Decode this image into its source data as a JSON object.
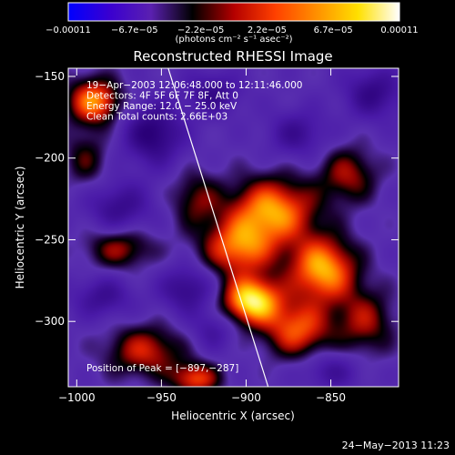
{
  "chart_data": {
    "type": "heatmap",
    "title": "Reconstructed RHESSI Image",
    "xlabel": "Heliocentric X (arcsec)",
    "ylabel": "Heliocentric Y (arcsec)",
    "xlim": [
      -1005,
      -810
    ],
    "ylim": [
      -340,
      -145
    ],
    "x_ticks": [
      -1000,
      -950,
      -900,
      -850
    ],
    "x_tick_labels": [
      "−1000",
      "−950",
      "−900",
      "−850"
    ],
    "y_ticks": [
      -150,
      -200,
      -250,
      -300
    ],
    "y_tick_labels": [
      "−150",
      "−200",
      "−250",
      "−300"
    ],
    "colorbar": {
      "tick_labels": [
        "−0.00011",
        "−6.7e−05",
        "−2.2e−05",
        "2.2e−05",
        "6.7e−05",
        "0.00011"
      ],
      "min": -0.00011,
      "max": 0.00011,
      "unit_label": "(photons cm⁻² s⁻¹ asec⁻²)",
      "colors": [
        "#0000ff",
        "#3a00d0",
        "#5a20b0",
        "#000000",
        "#b40000",
        "#ff4000",
        "#ff9000",
        "#ffe000",
        "#ffffff"
      ]
    },
    "annotations": [
      "19−Apr−2003 12:06:48.000 to 12:11:46.000",
      "Detectors: 4F 5F 6F 7F 8F, Att 0",
      "Energy Range: 12.0 − 25.0 keV",
      "Clean     Total counts: 2.66E+03"
    ],
    "peak_label": "Position of Peak = [−897,−287]",
    "peak": [
      -897,
      -287
    ],
    "limb_line": [
      [
        -946,
        -145
      ],
      [
        -887,
        -340
      ]
    ],
    "blobs": [
      {
        "x": -897,
        "y": -287,
        "sx": 12,
        "sy": 10,
        "a": 1.25
      },
      {
        "x": -885,
        "y": -232,
        "sx": 18,
        "sy": 14,
        "a": 1.0
      },
      {
        "x": -855,
        "y": -268,
        "sx": 14,
        "sy": 14,
        "a": 1.05
      },
      {
        "x": -905,
        "y": -255,
        "sx": 15,
        "sy": 12,
        "a": 0.85
      },
      {
        "x": -870,
        "y": -305,
        "sx": 14,
        "sy": 12,
        "a": 0.8
      },
      {
        "x": -840,
        "y": -210,
        "sx": 12,
        "sy": 12,
        "a": 0.55
      },
      {
        "x": -830,
        "y": -300,
        "sx": 12,
        "sy": 14,
        "a": 0.55
      },
      {
        "x": -930,
        "y": -225,
        "sx": 10,
        "sy": 12,
        "a": 0.45
      },
      {
        "x": -990,
        "y": -165,
        "sx": 11,
        "sy": 10,
        "a": 0.95
      },
      {
        "x": -995,
        "y": -200,
        "sx": 9,
        "sy": 12,
        "a": 0.4
      },
      {
        "x": -975,
        "y": -255,
        "sx": 14,
        "sy": 9,
        "a": 0.55
      },
      {
        "x": -960,
        "y": -318,
        "sx": 16,
        "sy": 11,
        "a": 0.65
      },
      {
        "x": -930,
        "y": -335,
        "sx": 10,
        "sy": 7,
        "a": 0.75
      },
      {
        "x": -985,
        "y": -285,
        "sx": 12,
        "sy": 9,
        "a": -0.45
      },
      {
        "x": -955,
        "y": -185,
        "sx": 12,
        "sy": 13,
        "a": -0.7
      },
      {
        "x": -920,
        "y": -160,
        "sx": 11,
        "sy": 9,
        "a": -0.5
      },
      {
        "x": -975,
        "y": -230,
        "sx": 13,
        "sy": 11,
        "a": -0.5
      },
      {
        "x": -935,
        "y": -280,
        "sx": 11,
        "sy": 10,
        "a": -0.55
      },
      {
        "x": -870,
        "y": -185,
        "sx": 12,
        "sy": 10,
        "a": -0.45
      },
      {
        "x": -825,
        "y": -160,
        "sx": 12,
        "sy": 11,
        "a": -0.55
      },
      {
        "x": -920,
        "y": -305,
        "sx": 9,
        "sy": 9,
        "a": -0.35
      },
      {
        "x": -850,
        "y": -330,
        "sx": 12,
        "sy": 8,
        "a": -0.4
      }
    ]
  },
  "footer": {
    "date": "24−May−2013 11:23"
  }
}
